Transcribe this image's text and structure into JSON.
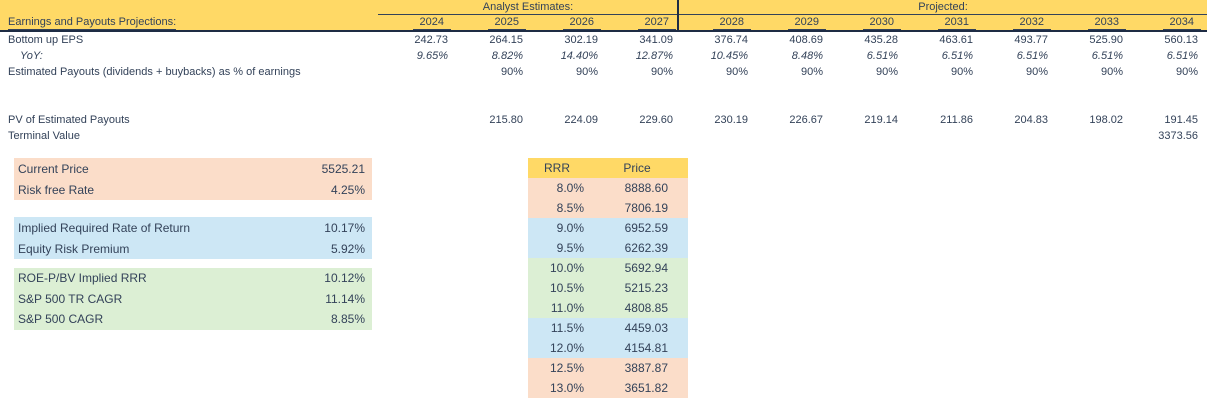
{
  "header": {
    "analyst_estimates_label": "Analyst Estimates:",
    "projected_label": "Projected:",
    "sheet_title": "Earnings and Payouts Projections:",
    "years": [
      "2024",
      "2025",
      "2026",
      "2027",
      "2028",
      "2029",
      "2030",
      "2031",
      "2032",
      "2033",
      "2034"
    ]
  },
  "projection_rows": [
    {
      "key": "eps",
      "label": "Bottom up EPS",
      "values": [
        "242.73",
        "264.15",
        "302.19",
        "341.09",
        "376.74",
        "408.69",
        "435.28",
        "463.61",
        "493.77",
        "525.90",
        "560.13"
      ]
    },
    {
      "key": "yoy",
      "label": "YoY:",
      "values": [
        "9.65%",
        "8.82%",
        "14.40%",
        "12.87%",
        "10.45%",
        "8.48%",
        "6.51%",
        "6.51%",
        "6.51%",
        "6.51%",
        "6.51%"
      ]
    },
    {
      "key": "payout",
      "label": "Estimated Payouts (dividends + buybacks) as % of earnings",
      "values": [
        "",
        "90%",
        "90%",
        "90%",
        "90%",
        "90%",
        "90%",
        "90%",
        "90%",
        "90%",
        "90%"
      ]
    },
    {
      "key": "pv",
      "label": "PV of Estimated Payouts",
      "values": [
        "",
        "215.80",
        "224.09",
        "229.60",
        "230.19",
        "226.67",
        "219.14",
        "211.86",
        "204.83",
        "198.02",
        "191.45"
      ]
    },
    {
      "key": "terminal",
      "label": "Terminal Value",
      "values": [
        "",
        "",
        "",
        "",
        "",
        "",
        "",
        "",
        "",
        "",
        "3373.56"
      ]
    }
  ],
  "summary_blocks": [
    {
      "key": "price",
      "band": "salmon",
      "rows": [
        {
          "label": "Current Price",
          "value": "5525.21"
        },
        {
          "label": "Risk free Rate",
          "value": "4.25%"
        }
      ]
    },
    {
      "key": "implied",
      "band": "blue",
      "rows": [
        {
          "label": "Implied Required Rate of Return",
          "value": "10.17%"
        },
        {
          "label": "Equity Risk Premium",
          "value": "5.92%"
        }
      ]
    },
    {
      "key": "benchmark",
      "band": "green",
      "rows": [
        {
          "label": "ROE-P/BV Implied RRR",
          "value": "10.12%"
        },
        {
          "label": "S&P 500 TR CAGR",
          "value": "11.14%"
        },
        {
          "label": "S&P 500 CAGR",
          "value": "8.85%"
        }
      ]
    }
  ],
  "sensitivity_table": {
    "headers": [
      "RRR",
      "Price"
    ],
    "rows": [
      {
        "rrr": "8.0%",
        "price": "8888.60",
        "band": "salmon"
      },
      {
        "rrr": "8.5%",
        "price": "7806.19",
        "band": "salmon"
      },
      {
        "rrr": "9.0%",
        "price": "6952.59",
        "band": "blue"
      },
      {
        "rrr": "9.5%",
        "price": "6262.39",
        "band": "blue"
      },
      {
        "rrr": "10.0%",
        "price": "5692.94",
        "band": "green"
      },
      {
        "rrr": "10.5%",
        "price": "5215.23",
        "band": "green"
      },
      {
        "rrr": "11.0%",
        "price": "4808.85",
        "band": "green"
      },
      {
        "rrr": "11.5%",
        "price": "4459.03",
        "band": "blue"
      },
      {
        "rrr": "12.0%",
        "price": "4154.81",
        "band": "blue"
      },
      {
        "rrr": "12.5%",
        "price": "3887.87",
        "band": "salmon"
      },
      {
        "rrr": "13.0%",
        "price": "3651.82",
        "band": "salmon"
      }
    ]
  },
  "colors": {
    "gold": "#FFD966",
    "salmon": "#FBDDC9",
    "blue": "#CDE7F5",
    "green": "#DCEFD4",
    "text": "#334259"
  }
}
